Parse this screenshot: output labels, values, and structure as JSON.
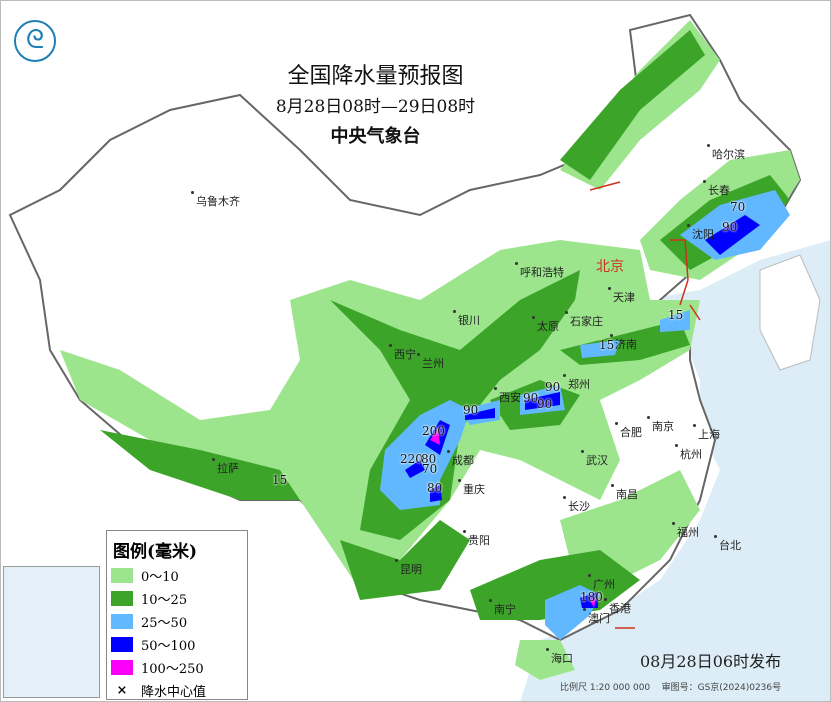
{
  "title": "全国降水量预报图",
  "period": "8月28日08时—29日08时",
  "agency": "中央气象台",
  "logo_icon": "cma-logo-icon",
  "legend": {
    "title": "图例(毫米)",
    "items": [
      {
        "label": "0～10",
        "color": "#9ce58c"
      },
      {
        "label": "10～25",
        "color": "#3ca428"
      },
      {
        "label": "25～50",
        "color": "#62b8ff"
      },
      {
        "label": "50～100",
        "color": "#0000fe"
      },
      {
        "label": "100～250",
        "color": "#fa00fa"
      }
    ],
    "center_label": "降水中心值",
    "center_symbol": "×"
  },
  "cities": [
    "乌鲁木齐",
    "哈尔滨",
    "长春",
    "沈阳",
    "呼和浩特",
    "北京",
    "天津",
    "银川",
    "太原",
    "石家庄",
    "济南",
    "西宁",
    "兰州",
    "郑州",
    "西安",
    "南京",
    "上海",
    "合肥",
    "成都",
    "武汉",
    "杭州",
    "重庆",
    "长沙",
    "南昌",
    "拉萨",
    "贵阳",
    "福州",
    "台北",
    "昆明",
    "广州",
    "南宁",
    "香港",
    "澳门",
    "海口"
  ],
  "center_values": [
    "70",
    "90",
    "15",
    "15",
    "90",
    "90",
    "90",
    "90",
    "200",
    "220",
    "80",
    "70",
    "80",
    "15",
    "180"
  ],
  "issued": "08月28日06时发布",
  "scale": "比例尺 1:20 000 000",
  "map_approval": "审图号：GS京(2024)0236号"
}
